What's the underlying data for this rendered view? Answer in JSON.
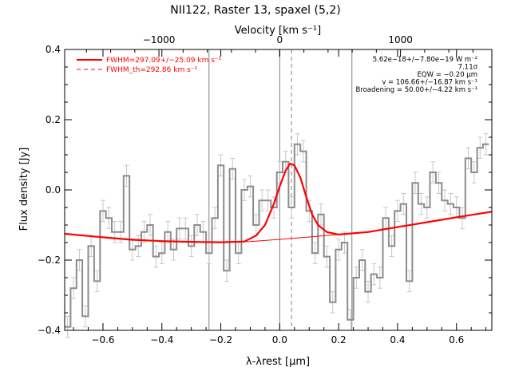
{
  "title": "NII122, Raster 13, spaxel (5,2)",
  "chart_data": {
    "type": "line",
    "xlabel": "λ-λrest [μm]",
    "ylabel": "Flux density [Jy]",
    "top_axis_label": "Velocity [km s⁻¹]",
    "xlim": [
      -0.73,
      0.72
    ],
    "ylim": [
      -0.4,
      0.4
    ],
    "x_ticks": [
      -0.6,
      -0.4,
      -0.2,
      0.0,
      0.2,
      0.4,
      0.6
    ],
    "x_tick_labels": [
      "−0.6",
      "−0.4",
      "−0.2",
      "0.0",
      "0.2",
      "0.4",
      "0.6"
    ],
    "y_ticks": [
      -0.4,
      -0.2,
      0.0,
      0.2,
      0.4
    ],
    "y_tick_labels": [
      "−0.4",
      "−0.2",
      "0.0",
      "0.2",
      "0.4"
    ],
    "top_ticks_velocity": [
      -1000,
      0,
      1000
    ],
    "top_tick_labels": [
      "−1000",
      "0",
      "1000"
    ],
    "velocity_axis": {
      "zero_at_x": 0.0,
      "x_per_1000_kms": 0.41
    },
    "vertical_lines": {
      "solid": [
        -0.24,
        0.0,
        0.245
      ],
      "dashed": [
        0.04
      ]
    },
    "legend": [
      {
        "label": "FWHM=297.09+/−25.09 km s⁻¹",
        "style": "solid"
      },
      {
        "label": "FWHM_th=292.86 km s⁻¹",
        "style": "dashed"
      }
    ],
    "stats": [
      "5.62e−18+/−7.80e−19 W m⁻²",
      "7.11σ",
      "EQW = −0.20 μm",
      "v = 106.66+/−16.87 km s⁻¹",
      "Broadening = 50.00+/−4.22 km s⁻¹"
    ],
    "spectrum": {
      "x": [
        -0.72,
        -0.7,
        -0.68,
        -0.66,
        -0.64,
        -0.62,
        -0.6,
        -0.58,
        -0.56,
        -0.54,
        -0.52,
        -0.5,
        -0.48,
        -0.46,
        -0.44,
        -0.42,
        -0.4,
        -0.38,
        -0.36,
        -0.34,
        -0.32,
        -0.3,
        -0.28,
        -0.26,
        -0.24,
        -0.22,
        -0.2,
        -0.18,
        -0.16,
        -0.14,
        -0.12,
        -0.1,
        -0.08,
        -0.06,
        -0.04,
        -0.02,
        0.0,
        0.02,
        0.04,
        0.06,
        0.08,
        0.1,
        0.12,
        0.14,
        0.16,
        0.18,
        0.2,
        0.22,
        0.24,
        0.26,
        0.28,
        0.3,
        0.32,
        0.34,
        0.36,
        0.38,
        0.4,
        0.42,
        0.44,
        0.46,
        0.48,
        0.5,
        0.52,
        0.54,
        0.56,
        0.58,
        0.6,
        0.62,
        0.64,
        0.66,
        0.68,
        0.7
      ],
      "y": [
        -0.39,
        -0.28,
        -0.2,
        -0.36,
        -0.16,
        -0.26,
        -0.06,
        -0.08,
        -0.12,
        -0.12,
        0.04,
        -0.17,
        -0.16,
        -0.12,
        -0.1,
        -0.19,
        -0.18,
        -0.12,
        -0.17,
        -0.11,
        -0.11,
        -0.16,
        -0.1,
        -0.12,
        -0.18,
        -0.08,
        0.07,
        -0.23,
        0.06,
        -0.18,
        0.0,
        0.01,
        -0.1,
        -0.03,
        -0.03,
        -0.05,
        0.05,
        0.08,
        -0.05,
        0.13,
        0.11,
        -0.06,
        -0.18,
        -0.07,
        -0.19,
        -0.32,
        -0.17,
        -0.15,
        -0.37,
        -0.25,
        -0.2,
        -0.29,
        -0.24,
        -0.25,
        -0.08,
        -0.16,
        -0.06,
        -0.04,
        -0.26,
        0.02,
        -0.04,
        -0.05,
        0.05,
        0.02,
        -0.03,
        -0.04,
        -0.05,
        -0.08,
        0.09,
        0.05,
        0.12,
        0.13
      ],
      "err": [
        0.03,
        0.03,
        0.03,
        0.03,
        0.03,
        0.03,
        0.03,
        0.03,
        0.03,
        0.03,
        0.03,
        0.03,
        0.03,
        0.03,
        0.03,
        0.03,
        0.03,
        0.03,
        0.03,
        0.03,
        0.03,
        0.03,
        0.03,
        0.03,
        0.03,
        0.03,
        0.03,
        0.03,
        0.03,
        0.03,
        0.03,
        0.03,
        0.03,
        0.03,
        0.03,
        0.03,
        0.03,
        0.03,
        0.03,
        0.03,
        0.03,
        0.03,
        0.03,
        0.03,
        0.03,
        0.03,
        0.03,
        0.03,
        0.03,
        0.03,
        0.03,
        0.03,
        0.03,
        0.03,
        0.03,
        0.03,
        0.03,
        0.03,
        0.03,
        0.03,
        0.03,
        0.03,
        0.03,
        0.03,
        0.03,
        0.03,
        0.03,
        0.03,
        0.03,
        0.03,
        0.03,
        0.03
      ]
    },
    "fit_curve": {
      "x": [
        -0.73,
        -0.6,
        -0.5,
        -0.4,
        -0.3,
        -0.2,
        -0.12,
        -0.08,
        -0.05,
        -0.02,
        0.0,
        0.02,
        0.035,
        0.05,
        0.07,
        0.09,
        0.11,
        0.13,
        0.16,
        0.2,
        0.3,
        0.4,
        0.5,
        0.6,
        0.72
      ],
      "y": [
        -0.125,
        -0.135,
        -0.142,
        -0.146,
        -0.148,
        -0.149,
        -0.147,
        -0.13,
        -0.1,
        -0.04,
        0.01,
        0.055,
        0.075,
        0.07,
        0.035,
        -0.02,
        -0.07,
        -0.1,
        -0.12,
        -0.127,
        -0.12,
        -0.106,
        -0.092,
        -0.078,
        -0.062
      ]
    },
    "continuum": {
      "x": [
        -0.73,
        -0.6,
        -0.4,
        -0.2,
        -0.1,
        0.0,
        0.1,
        0.2,
        0.3,
        0.4,
        0.5,
        0.6,
        0.72
      ],
      "y": [
        -0.125,
        -0.135,
        -0.146,
        -0.149,
        -0.147,
        -0.141,
        -0.134,
        -0.127,
        -0.12,
        -0.106,
        -0.092,
        -0.078,
        -0.062
      ]
    }
  }
}
